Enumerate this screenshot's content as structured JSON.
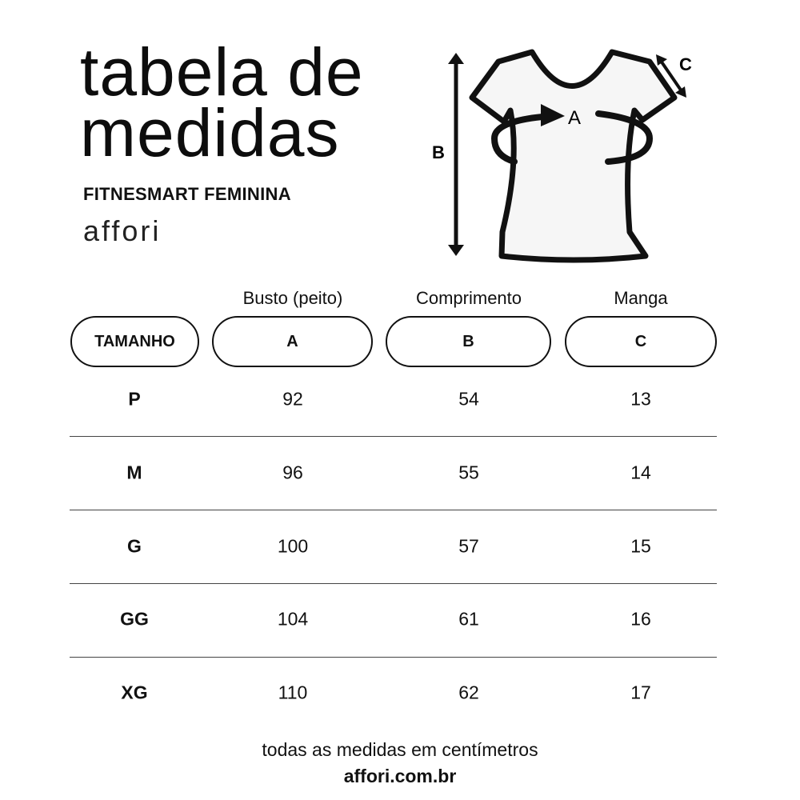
{
  "header": {
    "title_line1": "tabela de",
    "title_line2": "medidas",
    "subtitle": "FITNESMART FEMININA",
    "brand": "affori"
  },
  "diagram": {
    "label_a": "A",
    "label_b": "B",
    "label_c": "C"
  },
  "table": {
    "column_titles": [
      "",
      "Busto (peito)",
      "Comprimento",
      "Manga"
    ],
    "pills": [
      "TAMANHO",
      "A",
      "B",
      "C"
    ],
    "rows": [
      [
        "P",
        "92",
        "54",
        "13"
      ],
      [
        "M",
        "96",
        "55",
        "14"
      ],
      [
        "G",
        "100",
        "57",
        "15"
      ],
      [
        "GG",
        "104",
        "61",
        "16"
      ],
      [
        "XG",
        "110",
        "62",
        "17"
      ]
    ]
  },
  "footer": {
    "note": "todas as medidas em centímetros",
    "website": "affori.com.br"
  }
}
